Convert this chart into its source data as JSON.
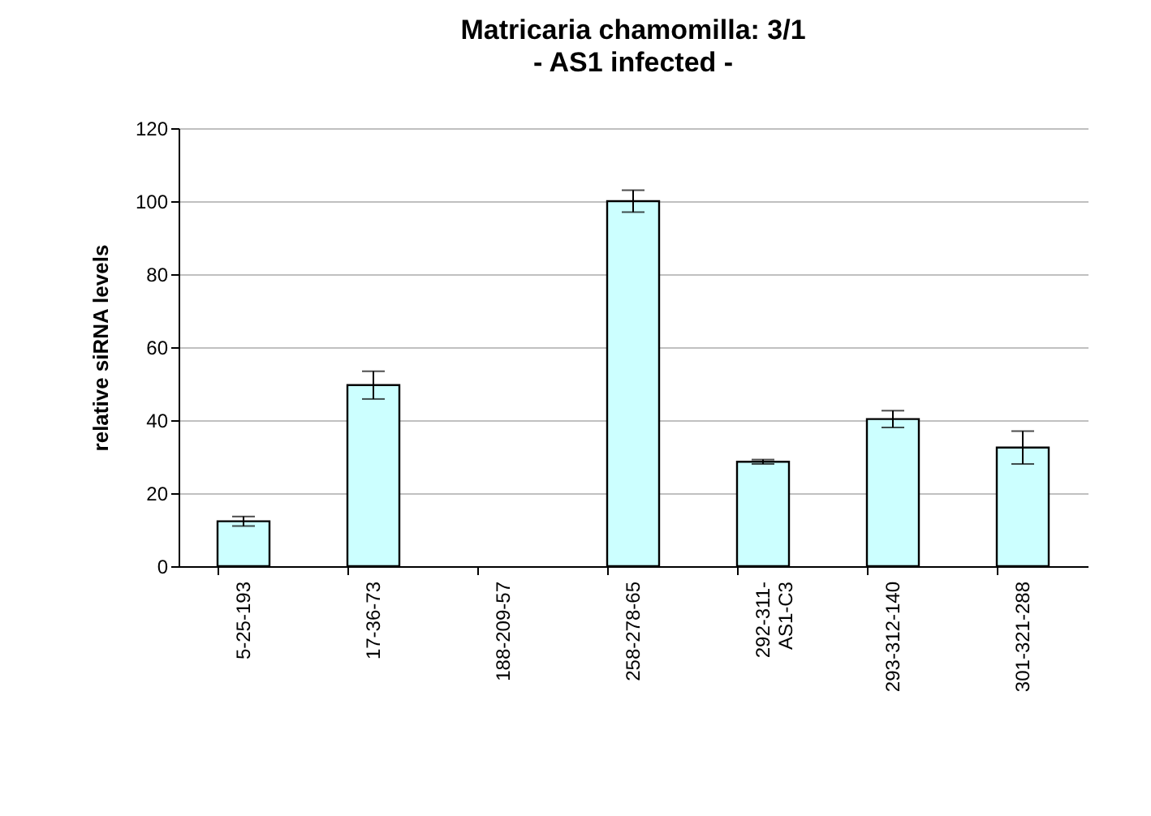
{
  "chart_data": {
    "type": "bar",
    "title": "Matricaria chamomilla: 3/1",
    "subtitle": "- AS1 infected -",
    "ylabel": "relative  siRNA levels",
    "categories": [
      "5-25-193",
      "17-36-73",
      "188-209-57",
      "258-278-65",
      "292-311- AS1-C3",
      "293-312-140",
      "301-321-288"
    ],
    "values": [
      12.3,
      49.6,
      0,
      100,
      28.6,
      40.3,
      32.5
    ],
    "errors": [
      1.3,
      3.8,
      null,
      3,
      0.6,
      2.3,
      4.5
    ],
    "color": "#ccffff",
    "ylim": [
      0,
      120
    ],
    "yticks": [
      0,
      20,
      40,
      60,
      80,
      100,
      120
    ],
    "grid": "y"
  }
}
